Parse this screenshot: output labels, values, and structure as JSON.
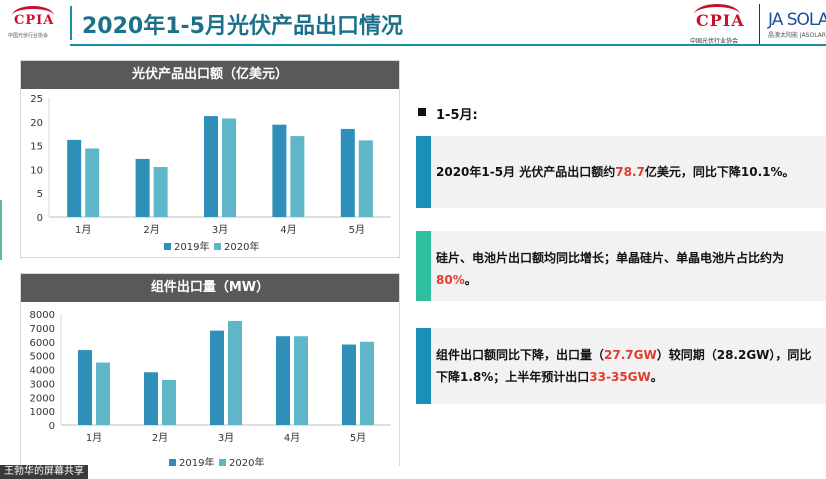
{
  "header": {
    "logo_left_text": "CPIA",
    "logo_left_sub": "中国光伏行业协会",
    "title": "2020年1-5月光伏产品出口情况",
    "logo_cpia_text": "CPIA",
    "logo_cpia_sub": "中国光伏行业协会",
    "logo_ja_text": "JA SOLA",
    "logo_ja_sub": "晶澳太阳能 JASOLAR"
  },
  "chart1_title": "光伏产品出口额（亿美元）",
  "chart2_title": "组件出口量（MW）",
  "chart_data": [
    {
      "type": "bar",
      "title": "光伏产品出口额（亿美元）",
      "categories": [
        "1月",
        "2月",
        "3月",
        "4月",
        "5月"
      ],
      "series": [
        {
          "name": "2019年",
          "values": [
            16.2,
            12.2,
            21.2,
            19.4,
            18.5
          ]
        },
        {
          "name": "2020年",
          "values": [
            14.4,
            10.5,
            20.7,
            17.0,
            16.1
          ]
        }
      ],
      "ylim": [
        0,
        25
      ],
      "yticks": [
        0,
        5,
        10,
        15,
        20,
        25
      ],
      "legend": "bottom",
      "colors": [
        "#2e8fb8",
        "#5fb6c9"
      ]
    },
    {
      "type": "bar",
      "title": "组件出口量（MW）",
      "categories": [
        "1月",
        "2月",
        "3月",
        "4月",
        "5月"
      ],
      "series": [
        {
          "name": "2019年",
          "values": [
            5400,
            3800,
            6800,
            6400,
            5800
          ]
        },
        {
          "name": "2020年",
          "values": [
            4500,
            3250,
            7500,
            6400,
            6000
          ]
        }
      ],
      "ylim": [
        0,
        8000
      ],
      "yticks": [
        0,
        1000,
        2000,
        3000,
        4000,
        5000,
        6000,
        7000,
        8000
      ],
      "legend": "bottom",
      "colors": [
        "#2e8fb8",
        "#5fb6c9"
      ]
    }
  ],
  "section": {
    "label": "1-5月:"
  },
  "panels": [
    {
      "accent": "#1a8fb8",
      "parts": [
        {
          "t": "2020年1-5月 光伏产品出口额约"
        },
        {
          "t": "78.7",
          "red": true
        },
        {
          "t": "亿美元，同比下降10.1%。"
        }
      ]
    },
    {
      "accent": "#2fbf9f",
      "parts": [
        {
          "t": "硅片、电池片出口额均同比增长；单晶硅片、单晶电池片占比约为"
        },
        {
          "t": "80%",
          "red": true
        },
        {
          "t": "。"
        }
      ]
    },
    {
      "accent": "#1a8fb8",
      "parts": [
        {
          "t": "组件出口额同比下降，出口量（"
        },
        {
          "t": "27.7GW",
          "red": true
        },
        {
          "t": "）较同期（28.2GW），同比下降1.8%；上半年预计出口"
        },
        {
          "t": "33-35GW",
          "red": true
        },
        {
          "t": "。"
        }
      ]
    }
  ],
  "footer": {
    "share_label": "王勃华的屏幕共享"
  }
}
